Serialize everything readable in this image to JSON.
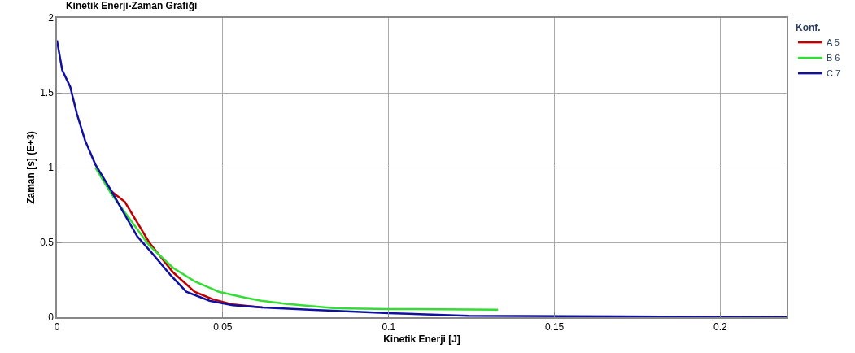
{
  "chart_data": {
    "type": "line",
    "title": "Kinetik Enerji-Zaman Grafiği",
    "xlabel": "Kinetik Enerji [J]",
    "ylabel": "Zaman [s] (E+3)",
    "legend_title": "Konf.",
    "xlim": [
      0,
      0.22
    ],
    "xticks": [
      0,
      0.05,
      0.1,
      0.15,
      0.2
    ],
    "ylim": [
      0,
      2
    ],
    "yticks": [
      0,
      0.5,
      1,
      1.5,
      2
    ],
    "grid": true,
    "legend": "top right",
    "line_style": "solid",
    "series": [
      {
        "name": "A 5",
        "color": "#c00000",
        "x": [
          0.0165,
          0.0205,
          0.0278,
          0.035,
          0.0415,
          0.047,
          0.053,
          0.062
        ],
        "values": [
          0.84,
          0.77,
          0.5,
          0.3,
          0.17,
          0.12,
          0.085,
          0.065
        ]
      },
      {
        "name": "B 6",
        "color": "#33dd33",
        "x": [
          0.0116,
          0.0165,
          0.0278,
          0.035,
          0.0415,
          0.0488,
          0.0568,
          0.0616,
          0.069,
          0.084,
          0.1,
          0.133
        ],
        "values": [
          1.0,
          0.82,
          0.48,
          0.33,
          0.24,
          0.17,
          0.13,
          0.11,
          0.09,
          0.06,
          0.055,
          0.05
        ]
      },
      {
        "name": "C 7",
        "color": "#1010a0",
        "x": [
          0,
          0.0016,
          0.004,
          0.006,
          0.0085,
          0.0116,
          0.0165,
          0.0198,
          0.0242,
          0.0286,
          0.0343,
          0.039,
          0.046,
          0.053,
          0.062,
          0.076,
          0.1,
          0.124,
          0.17,
          0.22
        ],
        "values": [
          1.85,
          1.65,
          1.54,
          1.36,
          1.18,
          1.02,
          0.84,
          0.71,
          0.54,
          0.43,
          0.28,
          0.17,
          0.11,
          0.08,
          0.065,
          0.05,
          0.027,
          0.01,
          0.005,
          0
        ]
      }
    ]
  }
}
